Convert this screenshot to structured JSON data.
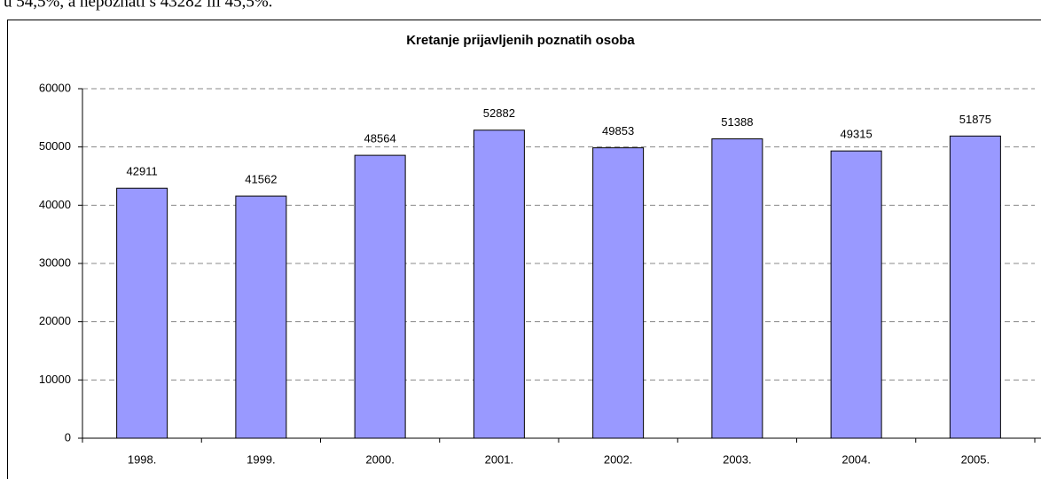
{
  "caption": "u 54,5%, a nepoznati s 43282 ili 45,5%.",
  "chart_data": {
    "type": "bar",
    "title": "Kretanje prijavljenih poznatih osoba",
    "categories": [
      "1998.",
      "1999.",
      "2000.",
      "2001.",
      "2002.",
      "2003.",
      "2004.",
      "2005."
    ],
    "values": [
      42911,
      41562,
      48564,
      52882,
      49853,
      51388,
      49315,
      51875
    ],
    "color": "#9999ff",
    "ylim": [
      0,
      60000
    ],
    "yticks": [
      0,
      10000,
      20000,
      30000,
      40000,
      50000,
      60000
    ],
    "grid": true
  }
}
